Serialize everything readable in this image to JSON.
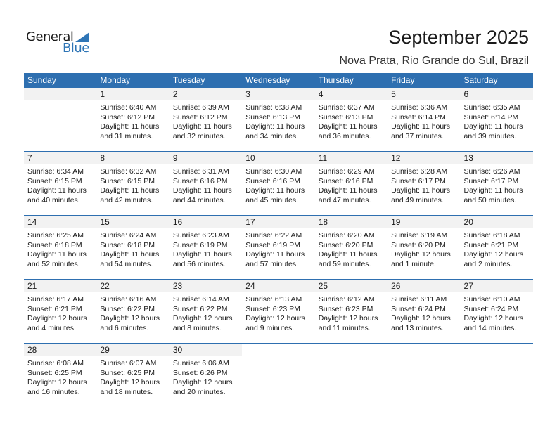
{
  "logo": {
    "general": "General",
    "blue": "Blue"
  },
  "title": "September 2025",
  "location": "Nova Prata, Rio Grande do Sul, Brazil",
  "days": [
    "Sunday",
    "Monday",
    "Tuesday",
    "Wednesday",
    "Thursday",
    "Friday",
    "Saturday"
  ],
  "weeks": [
    [
      null,
      {
        "d": "1",
        "sr": "Sunrise: 6:40 AM",
        "ss": "Sunset: 6:12 PM",
        "dl": "Daylight: 11 hours",
        "dm": "and 31 minutes."
      },
      {
        "d": "2",
        "sr": "Sunrise: 6:39 AM",
        "ss": "Sunset: 6:12 PM",
        "dl": "Daylight: 11 hours",
        "dm": "and 32 minutes."
      },
      {
        "d": "3",
        "sr": "Sunrise: 6:38 AM",
        "ss": "Sunset: 6:13 PM",
        "dl": "Daylight: 11 hours",
        "dm": "and 34 minutes."
      },
      {
        "d": "4",
        "sr": "Sunrise: 6:37 AM",
        "ss": "Sunset: 6:13 PM",
        "dl": "Daylight: 11 hours",
        "dm": "and 36 minutes."
      },
      {
        "d": "5",
        "sr": "Sunrise: 6:36 AM",
        "ss": "Sunset: 6:14 PM",
        "dl": "Daylight: 11 hours",
        "dm": "and 37 minutes."
      },
      {
        "d": "6",
        "sr": "Sunrise: 6:35 AM",
        "ss": "Sunset: 6:14 PM",
        "dl": "Daylight: 11 hours",
        "dm": "and 39 minutes."
      }
    ],
    [
      {
        "d": "7",
        "sr": "Sunrise: 6:34 AM",
        "ss": "Sunset: 6:15 PM",
        "dl": "Daylight: 11 hours",
        "dm": "and 40 minutes."
      },
      {
        "d": "8",
        "sr": "Sunrise: 6:32 AM",
        "ss": "Sunset: 6:15 PM",
        "dl": "Daylight: 11 hours",
        "dm": "and 42 minutes."
      },
      {
        "d": "9",
        "sr": "Sunrise: 6:31 AM",
        "ss": "Sunset: 6:16 PM",
        "dl": "Daylight: 11 hours",
        "dm": "and 44 minutes."
      },
      {
        "d": "10",
        "sr": "Sunrise: 6:30 AM",
        "ss": "Sunset: 6:16 PM",
        "dl": "Daylight: 11 hours",
        "dm": "and 45 minutes."
      },
      {
        "d": "11",
        "sr": "Sunrise: 6:29 AM",
        "ss": "Sunset: 6:16 PM",
        "dl": "Daylight: 11 hours",
        "dm": "and 47 minutes."
      },
      {
        "d": "12",
        "sr": "Sunrise: 6:28 AM",
        "ss": "Sunset: 6:17 PM",
        "dl": "Daylight: 11 hours",
        "dm": "and 49 minutes."
      },
      {
        "d": "13",
        "sr": "Sunrise: 6:26 AM",
        "ss": "Sunset: 6:17 PM",
        "dl": "Daylight: 11 hours",
        "dm": "and 50 minutes."
      }
    ],
    [
      {
        "d": "14",
        "sr": "Sunrise: 6:25 AM",
        "ss": "Sunset: 6:18 PM",
        "dl": "Daylight: 11 hours",
        "dm": "and 52 minutes."
      },
      {
        "d": "15",
        "sr": "Sunrise: 6:24 AM",
        "ss": "Sunset: 6:18 PM",
        "dl": "Daylight: 11 hours",
        "dm": "and 54 minutes."
      },
      {
        "d": "16",
        "sr": "Sunrise: 6:23 AM",
        "ss": "Sunset: 6:19 PM",
        "dl": "Daylight: 11 hours",
        "dm": "and 56 minutes."
      },
      {
        "d": "17",
        "sr": "Sunrise: 6:22 AM",
        "ss": "Sunset: 6:19 PM",
        "dl": "Daylight: 11 hours",
        "dm": "and 57 minutes."
      },
      {
        "d": "18",
        "sr": "Sunrise: 6:20 AM",
        "ss": "Sunset: 6:20 PM",
        "dl": "Daylight: 11 hours",
        "dm": "and 59 minutes."
      },
      {
        "d": "19",
        "sr": "Sunrise: 6:19 AM",
        "ss": "Sunset: 6:20 PM",
        "dl": "Daylight: 12 hours",
        "dm": "and 1 minute."
      },
      {
        "d": "20",
        "sr": "Sunrise: 6:18 AM",
        "ss": "Sunset: 6:21 PM",
        "dl": "Daylight: 12 hours",
        "dm": "and 2 minutes."
      }
    ],
    [
      {
        "d": "21",
        "sr": "Sunrise: 6:17 AM",
        "ss": "Sunset: 6:21 PM",
        "dl": "Daylight: 12 hours",
        "dm": "and 4 minutes."
      },
      {
        "d": "22",
        "sr": "Sunrise: 6:16 AM",
        "ss": "Sunset: 6:22 PM",
        "dl": "Daylight: 12 hours",
        "dm": "and 6 minutes."
      },
      {
        "d": "23",
        "sr": "Sunrise: 6:14 AM",
        "ss": "Sunset: 6:22 PM",
        "dl": "Daylight: 12 hours",
        "dm": "and 8 minutes."
      },
      {
        "d": "24",
        "sr": "Sunrise: 6:13 AM",
        "ss": "Sunset: 6:23 PM",
        "dl": "Daylight: 12 hours",
        "dm": "and 9 minutes."
      },
      {
        "d": "25",
        "sr": "Sunrise: 6:12 AM",
        "ss": "Sunset: 6:23 PM",
        "dl": "Daylight: 12 hours",
        "dm": "and 11 minutes."
      },
      {
        "d": "26",
        "sr": "Sunrise: 6:11 AM",
        "ss": "Sunset: 6:24 PM",
        "dl": "Daylight: 12 hours",
        "dm": "and 13 minutes."
      },
      {
        "d": "27",
        "sr": "Sunrise: 6:10 AM",
        "ss": "Sunset: 6:24 PM",
        "dl": "Daylight: 12 hours",
        "dm": "and 14 minutes."
      }
    ],
    [
      {
        "d": "28",
        "sr": "Sunrise: 6:08 AM",
        "ss": "Sunset: 6:25 PM",
        "dl": "Daylight: 12 hours",
        "dm": "and 16 minutes."
      },
      {
        "d": "29",
        "sr": "Sunrise: 6:07 AM",
        "ss": "Sunset: 6:25 PM",
        "dl": "Daylight: 12 hours",
        "dm": "and 18 minutes."
      },
      {
        "d": "30",
        "sr": "Sunrise: 6:06 AM",
        "ss": "Sunset: 6:26 PM",
        "dl": "Daylight: 12 hours",
        "dm": "and 20 minutes."
      },
      null,
      null,
      null,
      null
    ]
  ]
}
